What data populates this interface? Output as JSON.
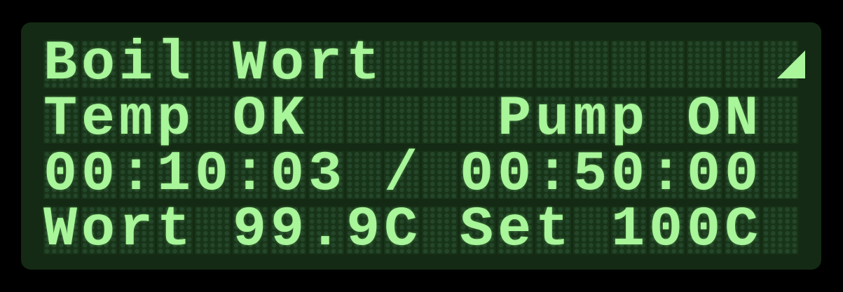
{
  "screen": {
    "lines": [
      "Boil Wort",
      "Temp OK     Pump ON",
      "00:10:03 / 00:50:00",
      "Wort 99.9C Set 100C"
    ]
  }
}
